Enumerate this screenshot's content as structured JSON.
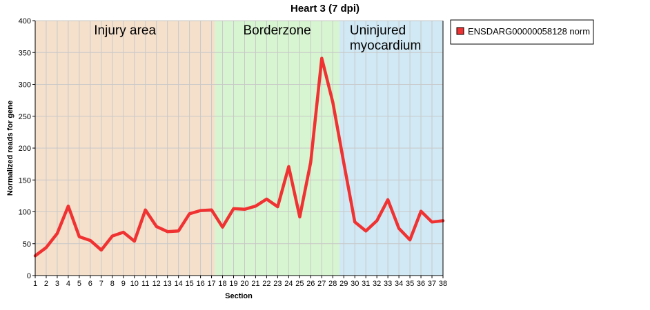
{
  "chart_data": {
    "type": "line",
    "title": "Heart 3 (7 dpi)",
    "xlabel": "Section",
    "ylabel": "Normalized reads for gene",
    "xlim": [
      1,
      38
    ],
    "ylim": [
      0,
      400
    ],
    "y_ticks": [
      0,
      50,
      100,
      150,
      200,
      250,
      300,
      350,
      400
    ],
    "grid": true,
    "legend_position": "right",
    "regions": [
      {
        "label": "Injury area",
        "from": 1,
        "to": 17.3,
        "color": "#f5e0cc"
      },
      {
        "label": "Borderzone",
        "from": 17.3,
        "to": 28.6,
        "color": "#d7f5d0"
      },
      {
        "label": "Uninjured myocardium",
        "from": 28.6,
        "to": 38,
        "color": "#d0e9f5"
      }
    ],
    "x": [
      1,
      2,
      3,
      4,
      5,
      6,
      7,
      8,
      9,
      10,
      11,
      12,
      13,
      14,
      15,
      16,
      17,
      18,
      19,
      20,
      21,
      22,
      23,
      24,
      25,
      26,
      27,
      28,
      29,
      30,
      31,
      32,
      33,
      34,
      35,
      36,
      37,
      38
    ],
    "series": [
      {
        "name": "ENSDARG00000058128 norm",
        "color": "#f03232",
        "values": [
          31,
          44,
          66,
          109,
          61,
          55,
          40,
          62,
          68,
          54,
          103,
          77,
          69,
          70,
          97,
          102,
          103,
          76,
          105,
          104,
          109,
          120,
          108,
          171,
          92,
          178,
          341,
          272,
          177,
          84,
          70,
          86,
          119,
          74,
          56,
          101,
          84,
          86
        ]
      }
    ]
  }
}
